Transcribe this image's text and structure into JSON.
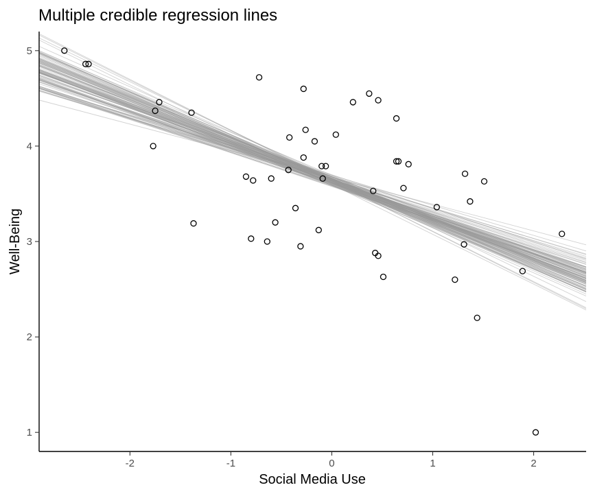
{
  "chart_data": {
    "type": "scatter",
    "title": "Multiple credible regression lines",
    "xlabel": "Social Media Use",
    "ylabel": "Well-Being",
    "xlim": [
      -2.9,
      2.52
    ],
    "ylim": [
      0.8,
      5.2
    ],
    "xticks": [
      -2,
      -1,
      0,
      1,
      2
    ],
    "yticks": [
      1,
      2,
      3,
      4,
      5
    ],
    "xtick_labels": [
      "-2",
      "-1",
      "0",
      "1",
      "2"
    ],
    "ytick_labels": [
      "1",
      "2",
      "3",
      "4",
      "5"
    ],
    "grid": false,
    "legend": "none",
    "points": [
      {
        "x": -2.65,
        "y": 5.0
      },
      {
        "x": -2.44,
        "y": 4.86
      },
      {
        "x": -2.41,
        "y": 4.86
      },
      {
        "x": -1.71,
        "y": 4.46
      },
      {
        "x": -1.75,
        "y": 4.37
      },
      {
        "x": -1.77,
        "y": 4.0
      },
      {
        "x": -1.39,
        "y": 4.35
      },
      {
        "x": -1.37,
        "y": 3.19
      },
      {
        "x": -0.72,
        "y": 4.72
      },
      {
        "x": -0.28,
        "y": 4.6
      },
      {
        "x": -0.26,
        "y": 4.17
      },
      {
        "x": -0.42,
        "y": 4.09
      },
      {
        "x": -0.17,
        "y": 4.05
      },
      {
        "x": 0.04,
        "y": 4.12
      },
      {
        "x": 0.21,
        "y": 4.46
      },
      {
        "x": 0.37,
        "y": 4.55
      },
      {
        "x": 0.46,
        "y": 4.48
      },
      {
        "x": 0.64,
        "y": 4.29
      },
      {
        "x": -0.28,
        "y": 3.88
      },
      {
        "x": -0.43,
        "y": 3.75
      },
      {
        "x": -0.1,
        "y": 3.79
      },
      {
        "x": -0.06,
        "y": 3.79
      },
      {
        "x": -0.09,
        "y": 3.66
      },
      {
        "x": -0.85,
        "y": 3.68
      },
      {
        "x": -0.78,
        "y": 3.64
      },
      {
        "x": -0.6,
        "y": 3.66
      },
      {
        "x": 0.41,
        "y": 3.53
      },
      {
        "x": 0.64,
        "y": 3.84
      },
      {
        "x": 0.66,
        "y": 3.84
      },
      {
        "x": 0.76,
        "y": 3.81
      },
      {
        "x": 0.71,
        "y": 3.56
      },
      {
        "x": 1.32,
        "y": 3.71
      },
      {
        "x": 1.51,
        "y": 3.63
      },
      {
        "x": 1.37,
        "y": 3.42
      },
      {
        "x": 1.04,
        "y": 3.36
      },
      {
        "x": -0.36,
        "y": 3.35
      },
      {
        "x": -0.56,
        "y": 3.2
      },
      {
        "x": -0.13,
        "y": 3.12
      },
      {
        "x": -0.8,
        "y": 3.03
      },
      {
        "x": -0.64,
        "y": 3.0
      },
      {
        "x": -0.31,
        "y": 2.95
      },
      {
        "x": 1.31,
        "y": 2.97
      },
      {
        "x": 0.43,
        "y": 2.88
      },
      {
        "x": 0.46,
        "y": 2.85
      },
      {
        "x": 0.51,
        "y": 2.63
      },
      {
        "x": 1.22,
        "y": 2.6
      },
      {
        "x": 1.89,
        "y": 2.69
      },
      {
        "x": 2.28,
        "y": 3.08
      },
      {
        "x": 1.44,
        "y": 2.2
      },
      {
        "x": 2.02,
        "y": 1.0
      }
    ],
    "regression_lines": {
      "count": 100,
      "intercept_range": [
        3.57,
        3.71
      ],
      "slope_range": [
        -0.57,
        -0.24
      ]
    }
  }
}
